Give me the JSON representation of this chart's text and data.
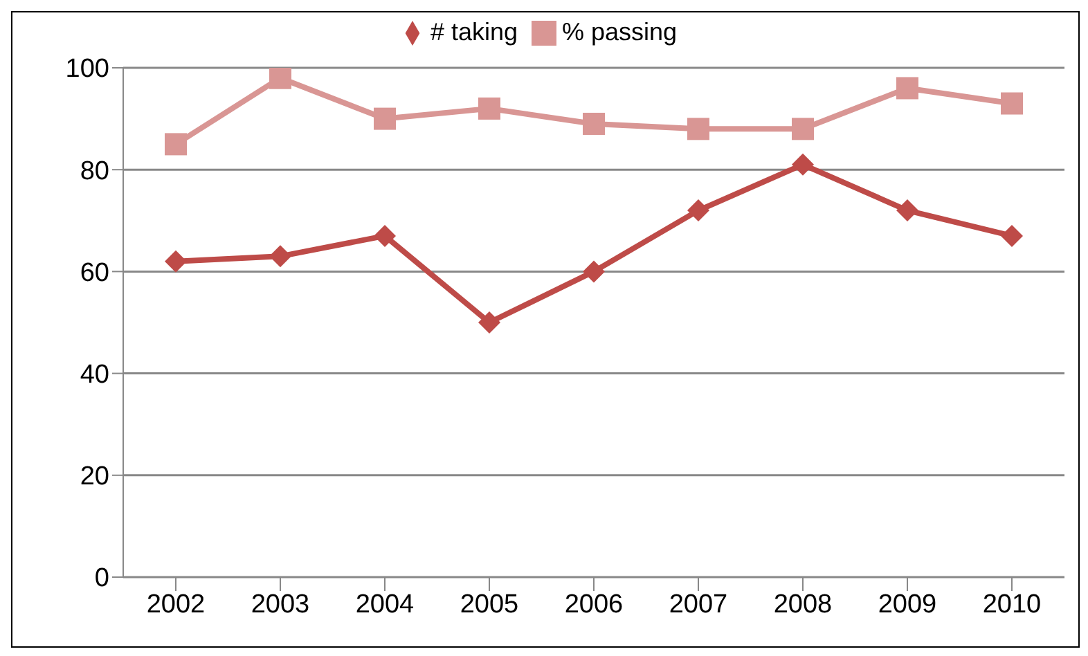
{
  "chart_data": {
    "type": "line",
    "categories": [
      "2002",
      "2003",
      "2004",
      "2005",
      "2006",
      "2007",
      "2008",
      "2009",
      "2010"
    ],
    "series": [
      {
        "name": "# taking",
        "color": "#be4b48",
        "marker": "diamond",
        "values": [
          62,
          63,
          67,
          50,
          60,
          72,
          81,
          72,
          67
        ]
      },
      {
        "name": "% passing",
        "color": "#d99694",
        "marker": "square",
        "values": [
          85,
          98,
          90,
          92,
          89,
          88,
          88,
          96,
          93
        ]
      }
    ],
    "ylim": [
      0,
      100
    ],
    "yticks": [
      0,
      20,
      40,
      60,
      80,
      100
    ],
    "grid": "y",
    "legend": "top",
    "line_style": "solid"
  }
}
